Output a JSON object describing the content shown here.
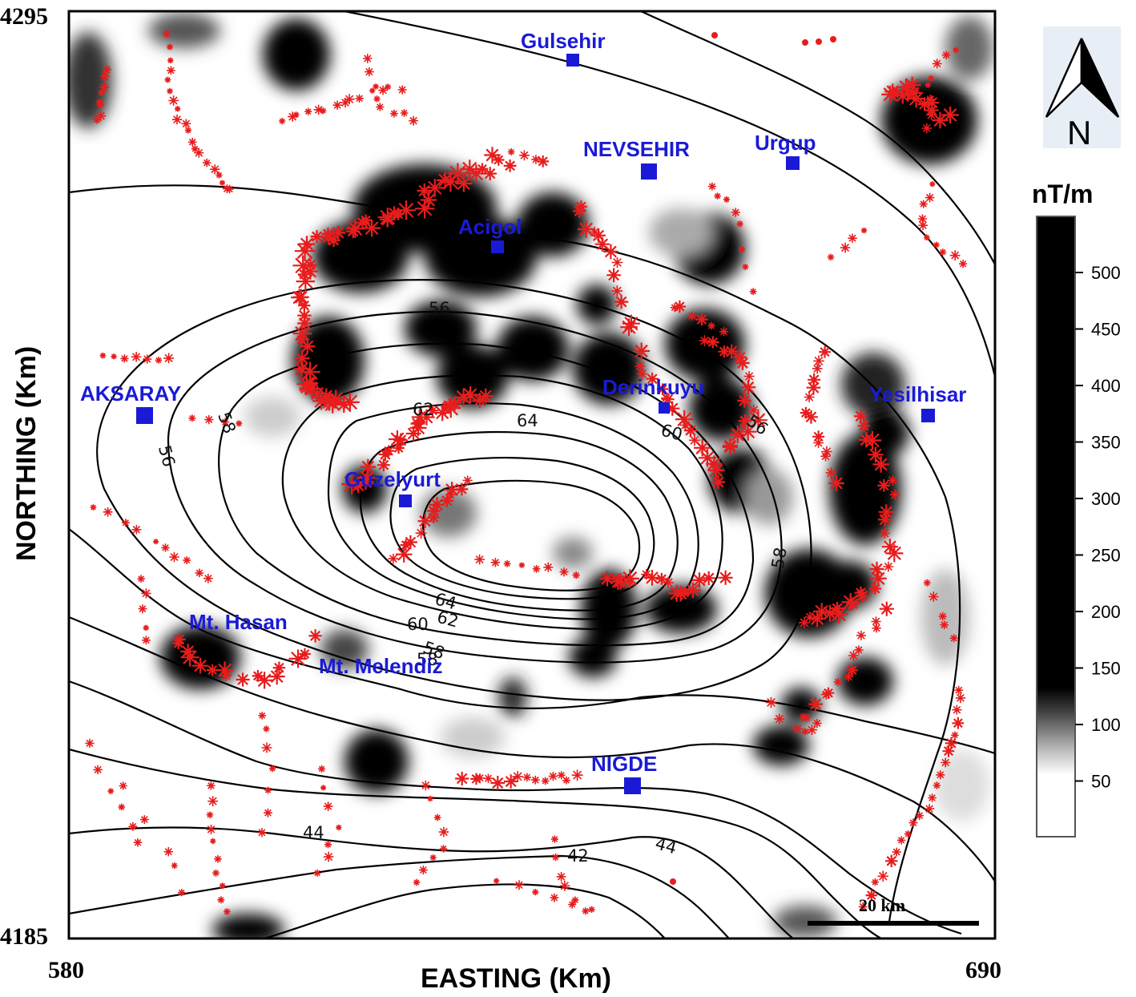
{
  "axes": {
    "x_title": "EASTING (Km)",
    "y_title": "NORTHING (Km)",
    "x_min_label": "580",
    "x_max_label": "690",
    "y_max_label": "4295",
    "y_min_label": "4185"
  },
  "north_arrow": {
    "label": "N"
  },
  "colorbar": {
    "title": "nT/m",
    "ticks": [
      "500",
      "450",
      "400",
      "350",
      "300",
      "250",
      "200",
      "150",
      "100",
      "50"
    ],
    "colors": {
      "high": "#000000",
      "low": "#ffffff"
    }
  },
  "scale_bar": {
    "label": "20 km"
  },
  "towns": [
    {
      "name": "Gulsehir"
    },
    {
      "name": "NEVSEHIR"
    },
    {
      "name": "Urgup"
    },
    {
      "name": "Acigol"
    },
    {
      "name": "AKSARAY"
    },
    {
      "name": "Derinkuyu"
    },
    {
      "name": "Yesilhisar"
    },
    {
      "name": "Guzelyurt"
    },
    {
      "name": "Mt. Hasan"
    },
    {
      "name": "Mt. Melendiz"
    },
    {
      "name": "NIGDE"
    }
  ],
  "contour_labels": [
    "56",
    "58",
    "56",
    "58",
    "62",
    "64",
    "60",
    "56",
    "58",
    "64",
    "62",
    "60",
    "58",
    "44",
    "42",
    "44"
  ],
  "colors": {
    "towns": "#1a1ad6",
    "epicenters": "#e81c1c",
    "contours": "#000000"
  }
}
